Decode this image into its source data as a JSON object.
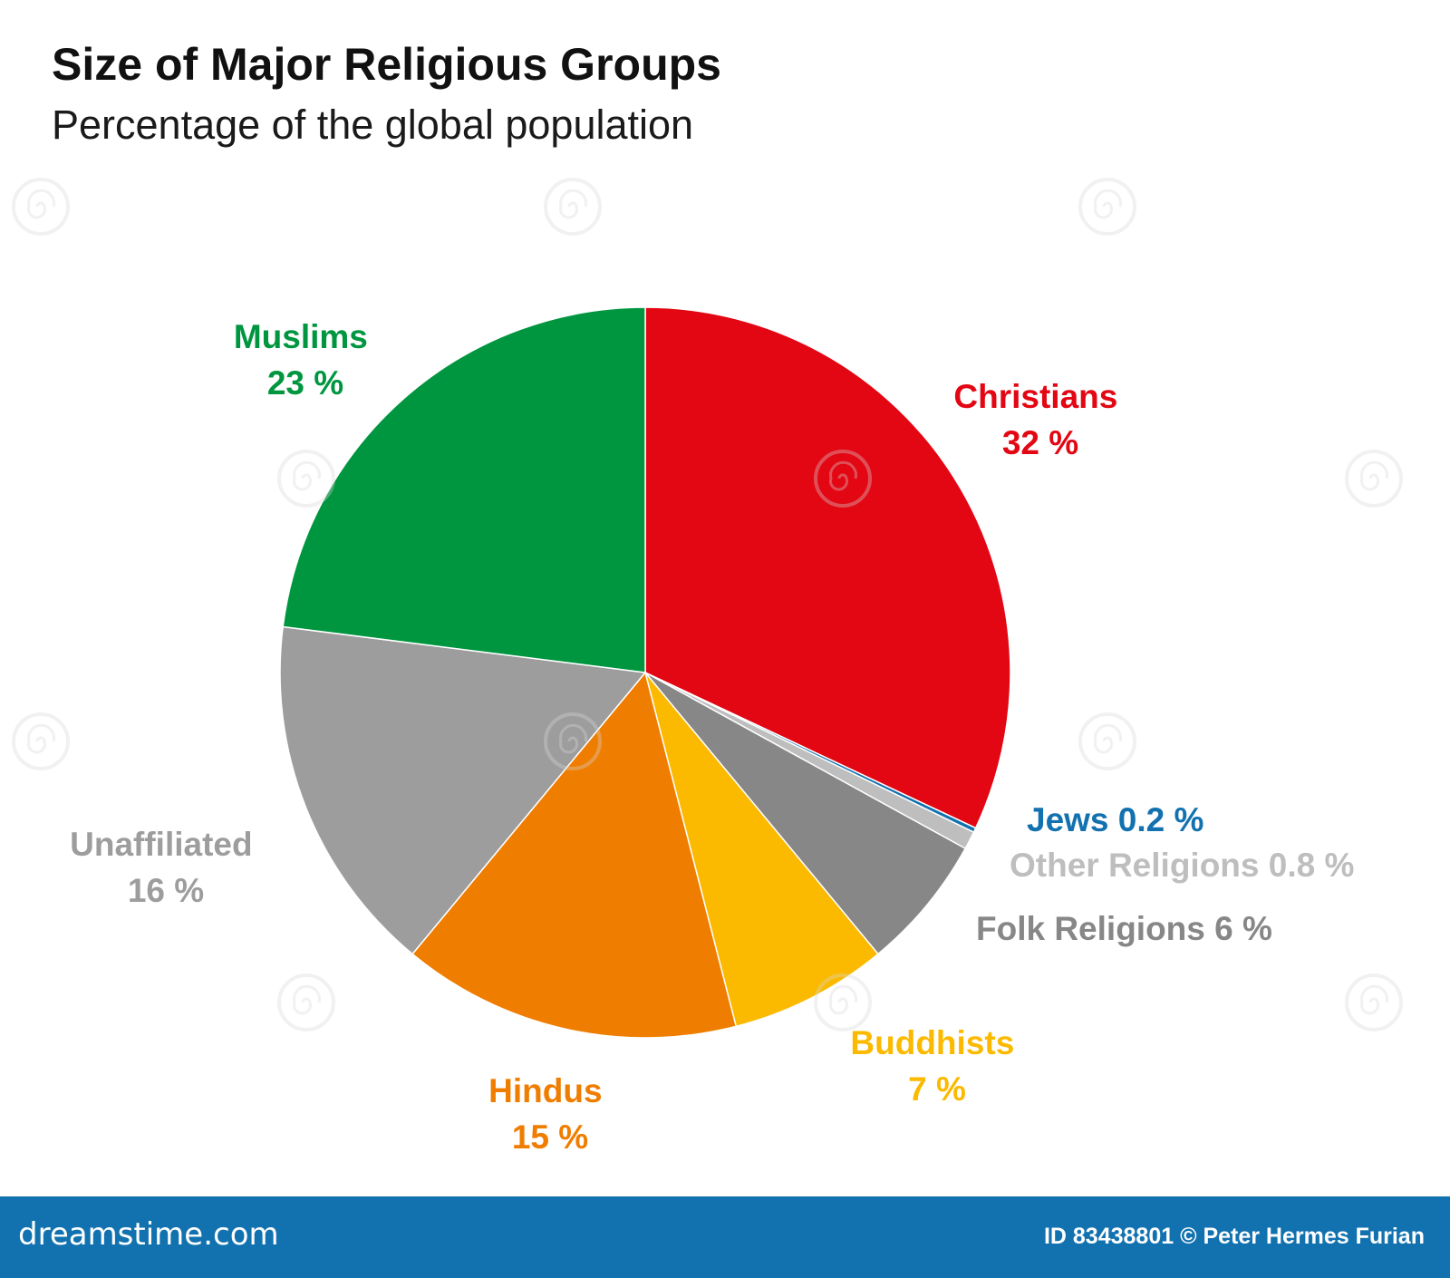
{
  "header": {
    "title": "Size of Major Religious Groups",
    "subtitle": "Percentage of the global population"
  },
  "chart_data": {
    "type": "pie",
    "title": "Size of Major Religious Groups",
    "subtitle": "Percentage of the global population",
    "unit": "%",
    "start_angle_deg": 0,
    "direction": "clockwise",
    "slices": [
      {
        "name": "Christians",
        "value": 32,
        "label": "32 %",
        "color": "#e30613"
      },
      {
        "name": "Jews",
        "value": 0.2,
        "label": "0.2 %",
        "color": "#1272b0"
      },
      {
        "name": "Other Religions",
        "value": 0.8,
        "label": "0.8 %",
        "color": "#bebebe"
      },
      {
        "name": "Folk Religions",
        "value": 6,
        "label": "6 %",
        "color": "#878787"
      },
      {
        "name": "Buddhists",
        "value": 7,
        "label": "7 %",
        "color": "#fbba00"
      },
      {
        "name": "Hindus",
        "value": 15,
        "label": "15 %",
        "color": "#ef7d00"
      },
      {
        "name": "Unaffiliated",
        "value": 16,
        "label": "16 %",
        "color": "#9d9d9d"
      },
      {
        "name": "Muslims",
        "value": 23,
        "label": "23 %",
        "color": "#009640"
      }
    ]
  },
  "watermark": {
    "text": "dreamstime"
  },
  "footer": {
    "brand": "dreamstime.com",
    "credit": "ID 83438801 © Peter Hermes Furian"
  }
}
